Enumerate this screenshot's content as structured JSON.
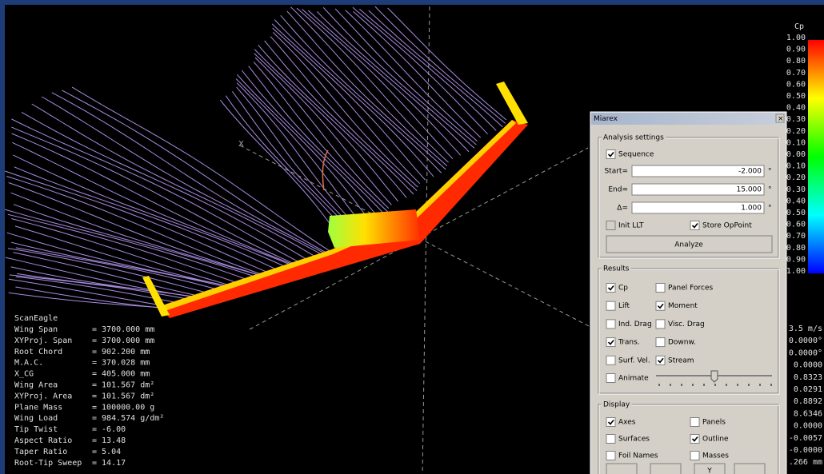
{
  "viewport": {
    "axis_label": "X"
  },
  "legend": {
    "title": "Cp",
    "labels": [
      "1.00",
      "0.90",
      "0.80",
      "0.70",
      "0.60",
      "0.50",
      "0.40",
      "0.30",
      "0.20",
      "0.10",
      "0.00",
      "-0.10",
      "-0.20",
      "-0.30",
      "-0.40",
      "-0.50",
      "-0.60",
      "-0.70",
      "-0.80",
      "-0.90",
      "-1.00"
    ]
  },
  "plane_info": {
    "name": "ScanEagle",
    "rows": [
      {
        "label": "Wing Span",
        "value": "= 3700.000 mm"
      },
      {
        "label": "XYProj. Span",
        "value": "= 3700.000 mm"
      },
      {
        "label": "Root Chord",
        "value": "=  902.200 mm"
      },
      {
        "label": "M.A.C.",
        "value": "=  370.028 mm"
      },
      {
        "label": "X_CG",
        "value": "=  405.000 mm"
      },
      {
        "label": "Wing Area",
        "value": "=  101.567 dm²"
      },
      {
        "label": "XYProj. Area",
        "value": "=  101.567 dm²"
      },
      {
        "label": "Plane Mass",
        "value": "= 100000.00 g"
      },
      {
        "label": "Wing Load",
        "value": "=  984.574 g/dm²"
      },
      {
        "label": "Tip Twist",
        "value": "=    -6.00"
      },
      {
        "label": "Aspect Ratio",
        "value": "=    13.48"
      },
      {
        "label": "Taper Ratio",
        "value": "=     5.04"
      },
      {
        "label": "Root-Tip Sweep",
        "value": "=    14.17"
      }
    ]
  },
  "results_readout": [
    "3.5 m/s",
    "0.0000°",
    "0.0000°",
    "0.0000",
    "0.8323",
    "0.0291",
    "0.8892",
    "8.6346",
    "0.0000",
    "-0.0057",
    "-0.0000",
    ".266 mm"
  ],
  "dialog": {
    "title": "Miarex",
    "analysis": {
      "title": "Analysis settings",
      "sequence": {
        "label": "Sequence",
        "checked": true
      },
      "fields": [
        {
          "label": "Start=",
          "value": "-2.000",
          "unit": "°"
        },
        {
          "label": "End=",
          "value": "15.000",
          "unit": "°"
        },
        {
          "label": "Δ=",
          "value": "1.000",
          "unit": "°"
        }
      ],
      "init_llt": {
        "label": "Init LLT",
        "checked": false,
        "disabled": true
      },
      "store_oppoint": {
        "label": "Store OpPoint",
        "checked": true
      },
      "analyze": "Analyze"
    },
    "results": {
      "title": "Results",
      "options": [
        {
          "label": "Cp",
          "checked": true
        },
        {
          "label": "Panel Forces",
          "checked": false
        },
        {
          "label": "Lift",
          "checked": false
        },
        {
          "label": "Moment",
          "checked": true
        },
        {
          "label": "Ind. Drag",
          "checked": false
        },
        {
          "label": "Visc. Drag",
          "checked": false
        },
        {
          "label": "Trans.",
          "checked": true
        },
        {
          "label": "Downw.",
          "checked": false
        },
        {
          "label": "Surf. Vel.",
          "checked": false
        },
        {
          "label": "Stream",
          "checked": true
        }
      ],
      "animate": {
        "label": "Animate",
        "checked": false
      }
    },
    "display": {
      "title": "Display",
      "options": [
        {
          "label": "Axes",
          "checked": true
        },
        {
          "label": "Panels",
          "checked": false
        },
        {
          "label": "Surfaces",
          "checked": false
        },
        {
          "label": "Outline",
          "checked": true
        },
        {
          "label": "Foil Names",
          "checked": false
        },
        {
          "label": "Masses",
          "checked": false
        }
      ],
      "view_button": "Y"
    }
  }
}
